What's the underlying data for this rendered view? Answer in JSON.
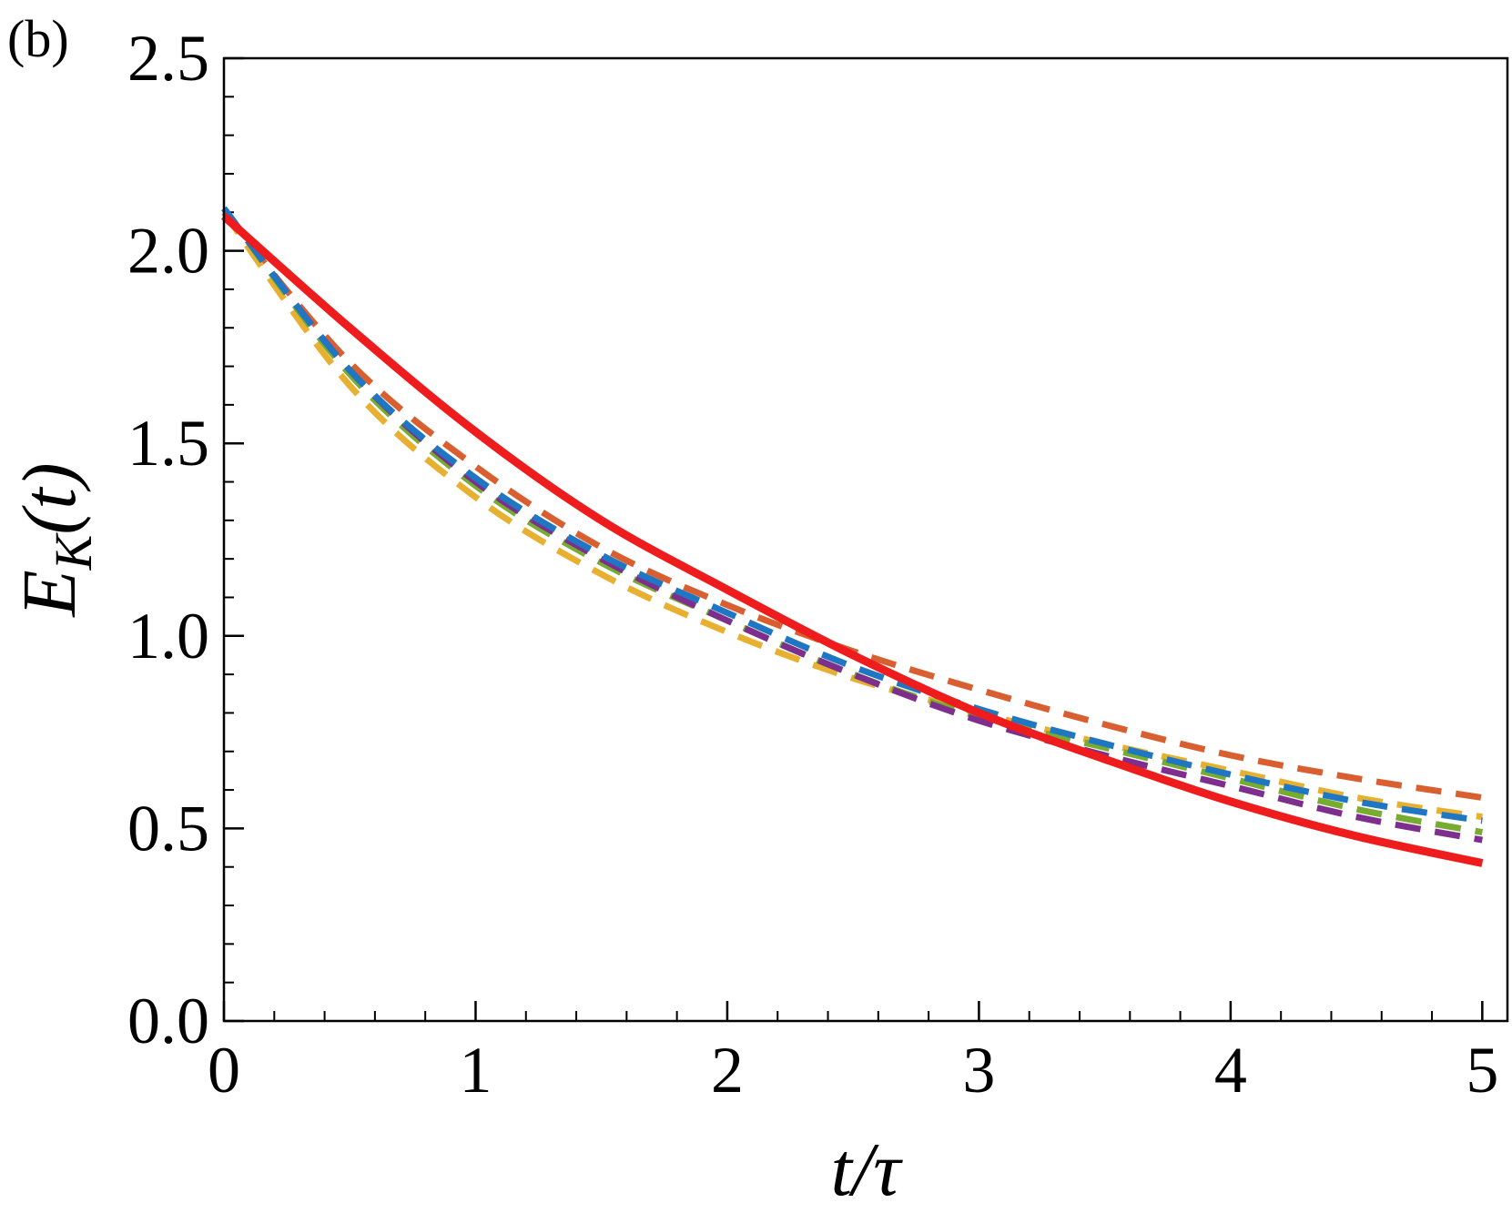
{
  "panel_label": "(b)",
  "chart_data": {
    "type": "line",
    "xlabel": "t/τ",
    "ylabel": "E_K(t)",
    "xlim": [
      0,
      5.1
    ],
    "ylim": [
      0,
      2.5
    ],
    "xticks": [
      "0",
      "1",
      "2",
      "3",
      "4",
      "5"
    ],
    "yticks": [
      "0.0",
      "0.5",
      "1.0",
      "1.5",
      "2.0",
      "2.5"
    ],
    "minor_ticks": true,
    "grid": false,
    "x": [
      0,
      0.5,
      1,
      1.5,
      2,
      2.5,
      3,
      3.5,
      4,
      4.5,
      5
    ],
    "series": [
      {
        "color": "#ee1c1c",
        "dash": "solid",
        "values": [
          2.09,
          1.8,
          1.53,
          1.3,
          1.12,
          0.95,
          0.8,
          0.68,
          0.57,
          0.48,
          0.41
        ]
      },
      {
        "color": "#d95f30",
        "dash": "dashed",
        "values": [
          2.1,
          1.71,
          1.44,
          1.23,
          1.08,
          0.96,
          0.86,
          0.77,
          0.69,
          0.63,
          0.58
        ]
      },
      {
        "color": "#e8b030",
        "dash": "dashed",
        "values": [
          2.1,
          1.65,
          1.36,
          1.16,
          1.01,
          0.89,
          0.8,
          0.72,
          0.65,
          0.58,
          0.53
        ]
      },
      {
        "color": "#77ac30",
        "dash": "dashed",
        "values": [
          2.11,
          1.68,
          1.39,
          1.19,
          1.04,
          0.9,
          0.79,
          0.71,
          0.63,
          0.55,
          0.49
        ]
      },
      {
        "color": "#7e2f8e",
        "dash": "dashed",
        "values": [
          2.11,
          1.69,
          1.4,
          1.2,
          1.04,
          0.9,
          0.78,
          0.69,
          0.61,
          0.53,
          0.47
        ]
      },
      {
        "color": "#1f77c4",
        "dash": "dashed",
        "values": [
          2.11,
          1.69,
          1.41,
          1.21,
          1.06,
          0.92,
          0.81,
          0.72,
          0.64,
          0.57,
          0.52
        ]
      }
    ]
  }
}
